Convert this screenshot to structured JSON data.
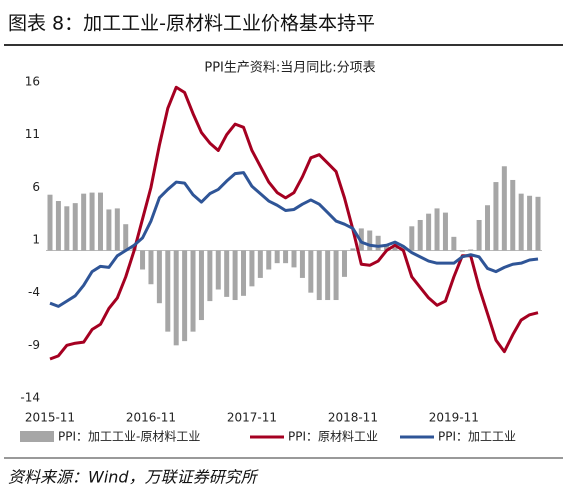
{
  "header": {
    "title": "图表 8：加工工业-原材料工业价格基本持平"
  },
  "chart_data": {
    "type": "combo",
    "title": "PPI生产资料:当月同比:分项表",
    "categories": [
      "2015-11",
      null,
      null,
      null,
      null,
      null,
      null,
      null,
      null,
      null,
      null,
      null,
      "2016-11",
      null,
      null,
      null,
      null,
      null,
      null,
      null,
      null,
      null,
      null,
      null,
      "2017-11",
      null,
      null,
      null,
      null,
      null,
      null,
      null,
      null,
      null,
      null,
      null,
      "2018-11",
      null,
      null,
      null,
      null,
      null,
      null,
      null,
      null,
      null,
      null,
      null,
      "2019-11",
      null,
      null,
      null,
      null,
      null,
      null,
      null,
      null,
      null,
      null
    ],
    "ylim": [
      -14,
      16
    ],
    "yticks": [
      16,
      11,
      6,
      1,
      -4,
      -9,
      -14
    ],
    "series": [
      {
        "name": "PPI：加工工业-原材料工业",
        "type": "bar",
        "color": "#a6a6a6",
        "values": [
          5.3,
          4.7,
          4.2,
          4.5,
          5.4,
          5.5,
          5.5,
          3.9,
          4.0,
          2.5,
          0.5,
          -1.8,
          -3.2,
          -5.0,
          -7.7,
          -9.0,
          -8.6,
          -7.7,
          -6.6,
          -4.8,
          -3.7,
          -4.4,
          -4.7,
          -4.3,
          -3.4,
          -2.6,
          -1.8,
          -1.2,
          -1.2,
          -1.6,
          -2.6,
          -4.0,
          -4.7,
          -4.7,
          -4.7,
          -2.5,
          0.2,
          2.1,
          1.9,
          1.4,
          0.5,
          0.3,
          0.4,
          2.3,
          2.9,
          3.5,
          4.0,
          3.6,
          1.3,
          -0.1,
          0.1,
          2.9,
          4.3,
          6.5,
          8.0,
          6.7,
          5.4,
          5.2,
          5.1
        ]
      },
      {
        "name": "PPI：原材料工业",
        "type": "line",
        "color": "#a50021",
        "values": [
          -10.3,
          -10.0,
          -9.0,
          -8.8,
          -8.7,
          -7.5,
          -7.0,
          -5.5,
          -4.5,
          -2.5,
          0.0,
          3.0,
          6.0,
          10.0,
          13.5,
          15.5,
          15.0,
          13.0,
          11.2,
          10.2,
          9.5,
          11.0,
          12.0,
          11.7,
          9.5,
          8.0,
          6.5,
          5.5,
          5.0,
          5.5,
          7.0,
          8.8,
          9.1,
          8.3,
          7.5,
          5.0,
          2.0,
          -1.3,
          -1.4,
          -1.0,
          0.0,
          0.5,
          0.0,
          -2.5,
          -3.5,
          -4.5,
          -5.2,
          -4.8,
          -2.5,
          -0.5,
          -0.5,
          -3.5,
          -6.0,
          -8.5,
          -9.6,
          -8.0,
          -6.6,
          -6.1,
          -5.9
        ]
      },
      {
        "name": "PPI：加工工业",
        "type": "line",
        "color": "#2f5597",
        "values": [
          -5.0,
          -5.3,
          -4.8,
          -4.3,
          -3.3,
          -2.0,
          -1.5,
          -1.6,
          -0.5,
          0.0,
          0.5,
          1.2,
          2.8,
          5.0,
          5.8,
          6.5,
          6.4,
          5.3,
          4.6,
          5.4,
          5.8,
          6.6,
          7.3,
          7.4,
          6.1,
          5.4,
          4.7,
          4.3,
          3.8,
          3.9,
          4.4,
          4.8,
          4.4,
          3.6,
          2.8,
          2.5,
          2.1,
          0.8,
          0.5,
          0.4,
          0.5,
          0.8,
          0.4,
          -0.2,
          -0.6,
          -1.0,
          -1.2,
          -1.2,
          -1.2,
          -0.6,
          -0.4,
          -0.6,
          -1.7,
          -2.0,
          -1.6,
          -1.3,
          -1.2,
          -0.9,
          -0.8
        ]
      }
    ]
  },
  "footer": {
    "source": "资料来源：Wind，万联证券研究所"
  }
}
